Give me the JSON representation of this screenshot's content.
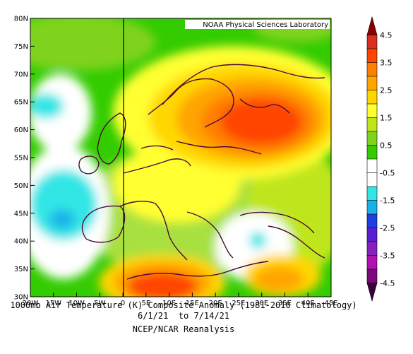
{
  "map": {
    "credit": "NOAA Physical Sciences Laboratory",
    "lat_ticks": [
      "80N",
      "75N",
      "70N",
      "65N",
      "60N",
      "55N",
      "50N",
      "45N",
      "40N",
      "35N",
      "30N"
    ],
    "lon_ticks": [
      "20W",
      "15W",
      "10W",
      "5W",
      "0",
      "5E",
      "10E",
      "15E",
      "20E",
      "25E",
      "30E",
      "35E",
      "40E",
      "45E"
    ],
    "extent": {
      "lon_min": -20,
      "lon_max": 45,
      "lat_min": 30,
      "lat_max": 80
    },
    "anomaly_max_region": "Western Russia / Baltic (~60N, 35E)"
  },
  "colorbar": {
    "labels": [
      "4.5",
      "3.5",
      "2.5",
      "1.5",
      "0.5",
      "-0.5",
      "-1.5",
      "-2.5",
      "-3.5",
      "-4.5"
    ],
    "colors": [
      "#8b0000",
      "#d7301f",
      "#ff4500",
      "#ff7f00",
      "#ffa500",
      "#ffd700",
      "#ffff33",
      "#bfe61a",
      "#7fd31a",
      "#33cc00",
      "#ffffff",
      "#ffffff",
      "#33e6e6",
      "#1ab2e6",
      "#1f3fe0",
      "#5a1fd0",
      "#8a1fc0",
      "#b012b0",
      "#7a0a7a",
      "#3d003d"
    ]
  },
  "captions": {
    "line1": "1000mb Air Temperature (K) Composite Anomaly (1981-2010 Climatology)",
    "line2": "6/1/21  to 7/14/21",
    "line3": "NCEP/NCAR Reanalysis"
  }
}
